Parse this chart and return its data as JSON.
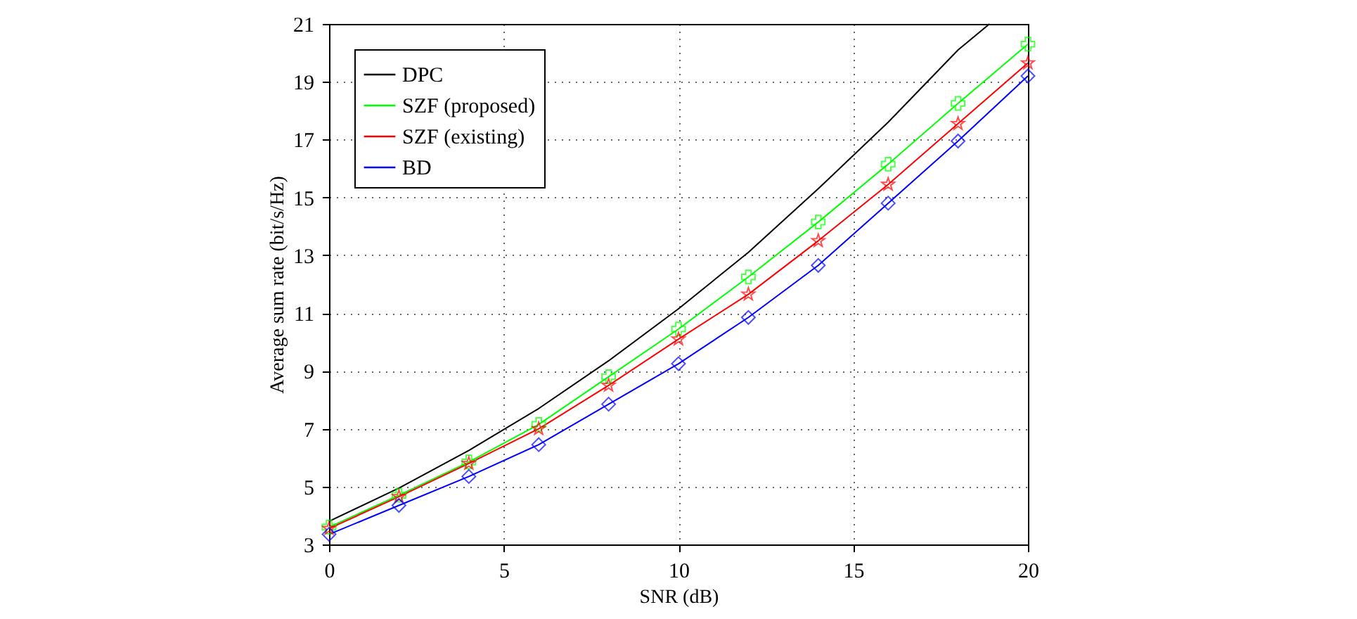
{
  "chart_data": {
    "type": "line",
    "xlabel": "SNR (dB)",
    "ylabel": "Average sum rate (bit/s/Hz)",
    "x": [
      0,
      2,
      4,
      6,
      8,
      10,
      12,
      14,
      16,
      18,
      20
    ],
    "series": [
      {
        "name": "DPC",
        "color": "#000000",
        "marker": "none",
        "x": [
          0,
          2,
          4,
          6,
          8,
          10,
          12,
          14,
          16,
          18,
          18.9
        ],
        "values": [
          3.8,
          4.95,
          6.25,
          7.7,
          9.35,
          11.15,
          13.1,
          15.3,
          17.6,
          20.1,
          21
        ]
      },
      {
        "name": "SZF (proposed)",
        "color": "#00ff00",
        "marker": "cross",
        "values": [
          3.6,
          4.7,
          5.85,
          7.15,
          8.8,
          10.45,
          12.25,
          14.15,
          16.15,
          18.25,
          20.3
        ]
      },
      {
        "name": "SZF (existing)",
        "color": "#ff0000",
        "marker": "star",
        "values": [
          3.55,
          4.65,
          5.8,
          7.0,
          8.5,
          10.1,
          11.65,
          13.5,
          15.45,
          17.55,
          19.65
        ]
      },
      {
        "name": "BD",
        "color": "#0000ff",
        "marker": "diamond",
        "values": [
          3.35,
          4.35,
          5.35,
          6.45,
          7.85,
          9.25,
          10.85,
          12.65,
          14.8,
          16.95,
          19.2
        ]
      }
    ],
    "xlim": [
      0,
      20
    ],
    "xticks": [
      0,
      5,
      10,
      15,
      20
    ],
    "ylim": [
      3,
      21
    ],
    "yticks": [
      3,
      5,
      7,
      9,
      11,
      13,
      15,
      17,
      19,
      21
    ],
    "grid": true,
    "legend": "top left",
    "line_style": "solid"
  }
}
